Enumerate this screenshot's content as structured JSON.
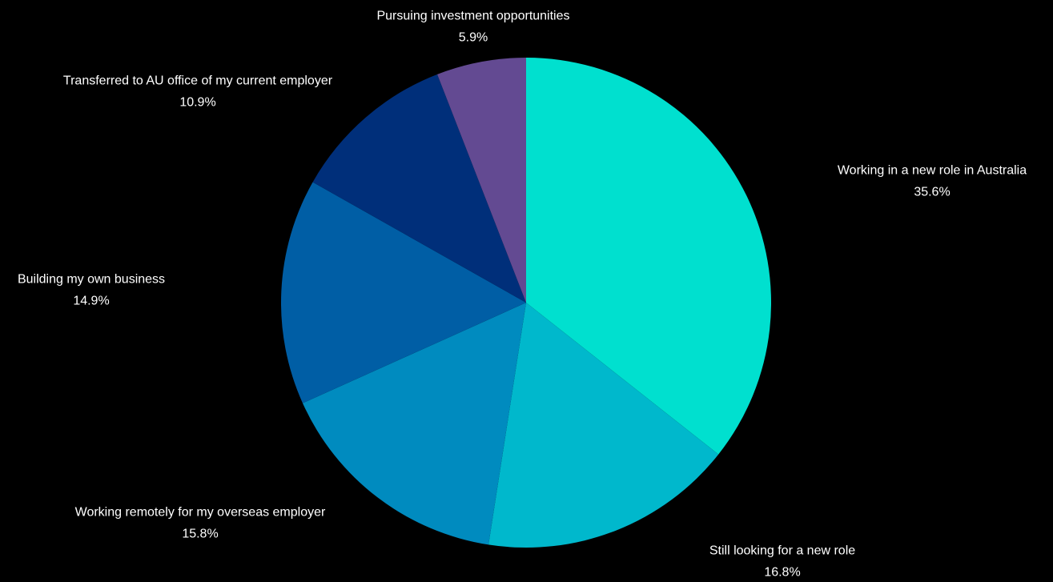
{
  "chart_data": {
    "type": "pie",
    "start_angle_deg": 0,
    "direction": "clockwise",
    "slices": [
      {
        "label": "Working in a new role in Australia",
        "value": 35.6,
        "value_label": "35.6%",
        "color": "#00E0CF"
      },
      {
        "label": "Still looking for a new role",
        "value": 16.8,
        "value_label": "16.8%",
        "color": "#00B8CC"
      },
      {
        "label": "Working remotely for my overseas employer",
        "value": 15.8,
        "value_label": "15.8%",
        "color": "#008BBF"
      },
      {
        "label": "Building my own business",
        "value": 14.9,
        "value_label": "14.9%",
        "color": "#005EA5"
      },
      {
        "label": "Transferred to AU office of my current employer",
        "value": 10.9,
        "value_label": "10.9%",
        "color": "#002F7A"
      },
      {
        "label": "Pursuing investment opportunities",
        "value": 5.9,
        "value_label": "5.9%",
        "color": "#634A92"
      }
    ]
  }
}
